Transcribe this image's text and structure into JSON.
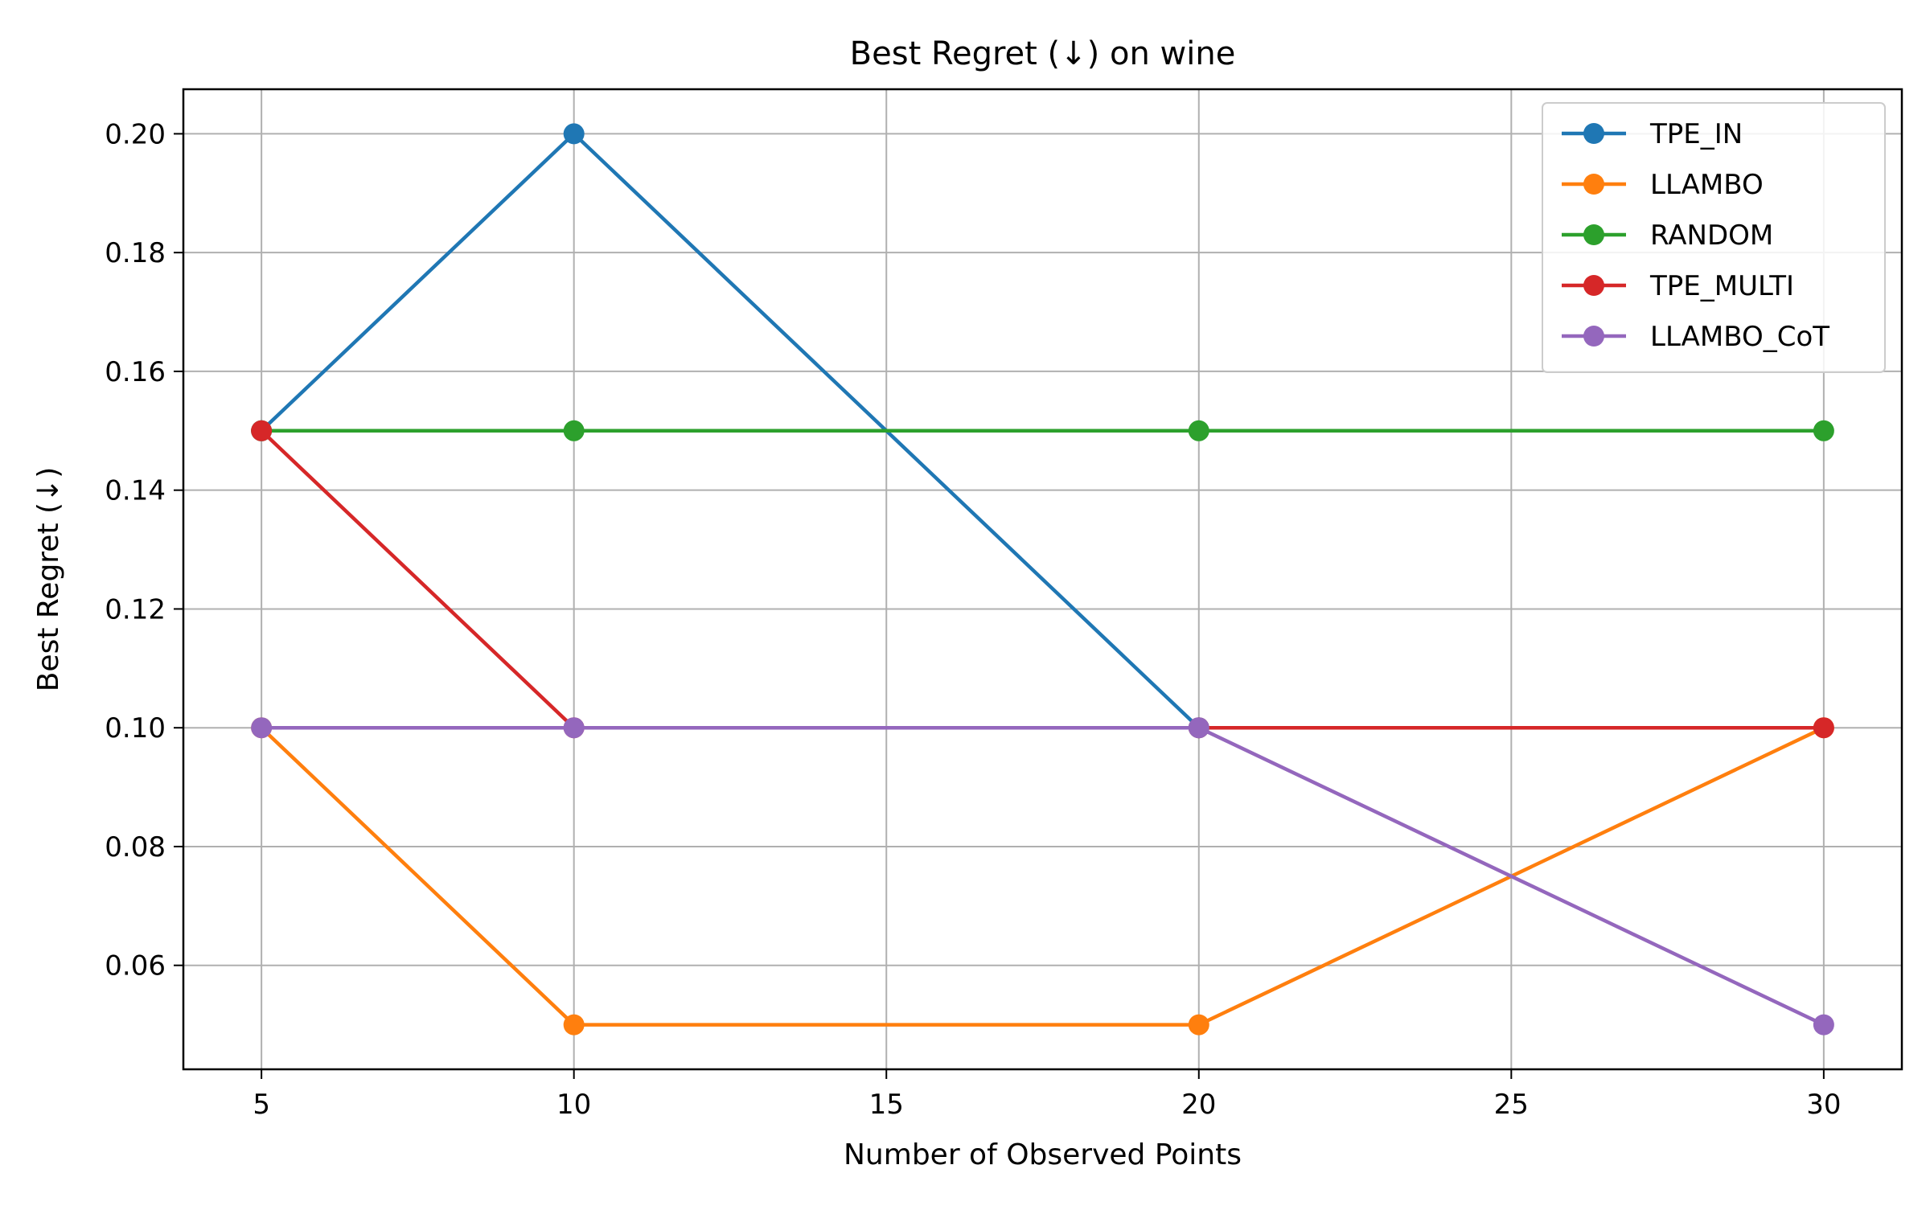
{
  "chart_data": {
    "type": "line",
    "title": "Best Regret (↓) on wine",
    "xlabel": "Number of Observed Points",
    "ylabel": "Best Regret (↓)",
    "x": [
      5,
      10,
      20,
      30
    ],
    "xticks": [
      5,
      10,
      15,
      20,
      25,
      30
    ],
    "yticks": [
      0.06,
      0.08,
      0.1,
      0.12,
      0.14,
      0.16,
      0.18,
      0.2
    ],
    "xlim": [
      3.75,
      31.25
    ],
    "ylim": [
      0.0425,
      0.2075
    ],
    "grid": true,
    "legend_position": "top-right",
    "series": [
      {
        "name": "TPE_IN",
        "color": "#1f77b4",
        "values": [
          0.15,
          0.2,
          0.1,
          null
        ]
      },
      {
        "name": "LLAMBO",
        "color": "#ff7f0e",
        "values": [
          0.1,
          0.05,
          0.05,
          0.1
        ]
      },
      {
        "name": "RANDOM",
        "color": "#2ca02c",
        "values": [
          0.15,
          0.15,
          0.15,
          0.15
        ]
      },
      {
        "name": "TPE_MULTI",
        "color": "#d62728",
        "values": [
          0.15,
          0.1,
          0.1,
          0.1
        ]
      },
      {
        "name": "LLAMBO_CoT",
        "color": "#9467bd",
        "values": [
          0.1,
          0.1,
          0.1,
          0.05
        ]
      }
    ]
  }
}
